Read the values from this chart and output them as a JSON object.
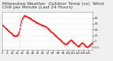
{
  "title": "Milwaukee Weather  Outdoor Temp (vs)  Wind Chill per Minute (Last 24 Hours)",
  "line_color": "#ff0000",
  "bg_color": "#f0f0f0",
  "plot_bg_color": "#ffffff",
  "grid_color": "#cccccc",
  "y_values": [
    28,
    27,
    26,
    25,
    24,
    23,
    22,
    21,
    20,
    19,
    18,
    17,
    16,
    15,
    14,
    13,
    12,
    11,
    10,
    10,
    9,
    9,
    9,
    10,
    11,
    12,
    14,
    17,
    22,
    28,
    33,
    37,
    40,
    42,
    43,
    44,
    44,
    43,
    43,
    42,
    42,
    41,
    41,
    40,
    40,
    39,
    38,
    37,
    36,
    36,
    35,
    35,
    34,
    33,
    33,
    32,
    31,
    31,
    30,
    30,
    29,
    29,
    28,
    28,
    27,
    27,
    26,
    26,
    25,
    25,
    24,
    23,
    22,
    21,
    20,
    19,
    18,
    17,
    16,
    15,
    14,
    13,
    12,
    11,
    10,
    9,
    8,
    7,
    6,
    5,
    4,
    3,
    2,
    1,
    0,
    -1,
    -2,
    -3,
    -4,
    -5,
    -5,
    -5,
    -4,
    -3,
    -2,
    -1,
    0,
    1,
    2,
    2,
    1,
    0,
    -1,
    -2,
    -3,
    -4,
    -5,
    -6,
    -7,
    -8,
    -8,
    -8,
    -7,
    -6,
    -5,
    -4,
    -3,
    -3,
    -4,
    -5,
    -6,
    -7,
    -8,
    -9,
    -10,
    -10,
    -9,
    -8,
    -7,
    -6,
    -5,
    -4,
    -3,
    -3
  ],
  "vline_x": 28,
  "vline_color": "#aaaaaa",
  "ylim": [
    -15,
    50
  ],
  "ytick_values": [
    40,
    30,
    20,
    10,
    0,
    -10
  ],
  "ytick_labels": [
    "40",
    "30",
    "20",
    "10",
    "0",
    "-10"
  ],
  "title_fontsize": 4.5,
  "tick_fontsize": 3.0,
  "line_width": 0.7,
  "marker_size": 0.8
}
